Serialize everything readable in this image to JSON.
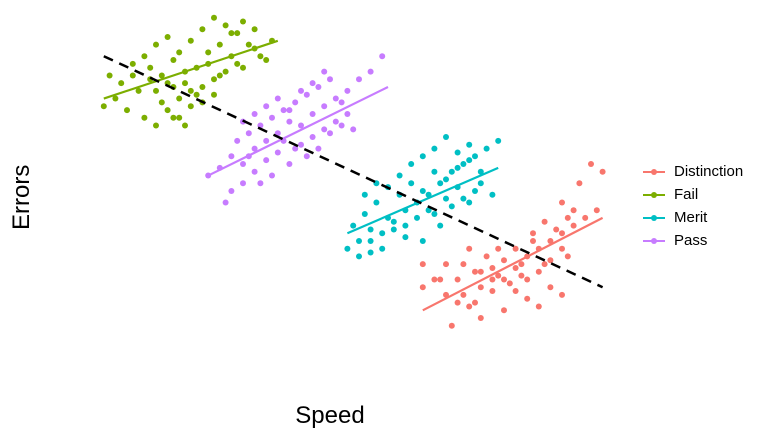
{
  "chart_data": {
    "type": "scatter",
    "title": "",
    "xlabel": "Speed",
    "ylabel": "Errors",
    "xlim": [
      0,
      100
    ],
    "ylim": [
      0,
      100
    ],
    "grid": false,
    "legend_position": "right",
    "series": [
      {
        "name": "Distinction",
        "color": "#F8766D",
        "trend": [
          [
            66,
            22
          ],
          [
            97,
            46
          ]
        ],
        "points": [
          [
            66,
            28
          ],
          [
            70,
            26
          ],
          [
            72,
            24
          ],
          [
            69,
            30
          ],
          [
            73,
            26
          ],
          [
            75,
            24
          ],
          [
            76,
            28
          ],
          [
            78,
            27
          ],
          [
            80,
            30
          ],
          [
            82,
            27
          ],
          [
            84,
            25
          ],
          [
            86,
            23
          ],
          [
            88,
            28
          ],
          [
            90,
            26
          ],
          [
            80,
            22
          ],
          [
            76,
            20
          ],
          [
            74,
            23
          ],
          [
            78,
            33
          ],
          [
            80,
            35
          ],
          [
            82,
            33
          ],
          [
            84,
            36
          ],
          [
            86,
            38
          ],
          [
            88,
            40
          ],
          [
            90,
            42
          ],
          [
            92,
            44
          ],
          [
            94,
            46
          ],
          [
            96,
            48
          ],
          [
            84,
            30
          ],
          [
            86,
            32
          ],
          [
            88,
            35
          ],
          [
            90,
            38
          ],
          [
            76,
            32
          ],
          [
            78,
            30
          ],
          [
            82,
            38
          ],
          [
            85,
            40
          ],
          [
            87,
            45
          ],
          [
            89,
            43
          ],
          [
            91,
            46
          ],
          [
            93,
            55
          ],
          [
            95,
            60
          ],
          [
            97,
            58
          ],
          [
            74,
            38
          ],
          [
            73,
            34
          ],
          [
            77,
            36
          ],
          [
            79,
            31
          ],
          [
            81,
            29
          ],
          [
            83,
            31
          ],
          [
            87,
            34
          ],
          [
            91,
            36
          ],
          [
            71,
            18
          ],
          [
            66,
            34
          ],
          [
            68,
            30
          ],
          [
            70,
            34
          ],
          [
            72,
            30
          ],
          [
            75,
            32
          ],
          [
            79,
            38
          ],
          [
            83,
            34
          ],
          [
            85,
            42
          ],
          [
            90,
            50
          ],
          [
            92,
            48
          ]
        ]
      },
      {
        "name": "Fail",
        "color": "#7CAE00",
        "trend": [
          [
            11,
            77
          ],
          [
            41,
            92
          ]
        ],
        "points": [
          [
            11,
            75
          ],
          [
            13,
            77
          ],
          [
            15,
            74
          ],
          [
            17,
            79
          ],
          [
            19,
            82
          ],
          [
            21,
            76
          ],
          [
            23,
            80
          ],
          [
            25,
            84
          ],
          [
            27,
            78
          ],
          [
            29,
            86
          ],
          [
            31,
            83
          ],
          [
            33,
            88
          ],
          [
            35,
            85
          ],
          [
            37,
            90
          ],
          [
            39,
            87
          ],
          [
            16,
            86
          ],
          [
            18,
            88
          ],
          [
            20,
            91
          ],
          [
            22,
            93
          ],
          [
            24,
            89
          ],
          [
            26,
            92
          ],
          [
            28,
            95
          ],
          [
            30,
            98
          ],
          [
            32,
            96
          ],
          [
            34,
            94
          ],
          [
            36,
            91
          ],
          [
            38,
            88
          ],
          [
            40,
            92
          ],
          [
            18,
            72
          ],
          [
            20,
            70
          ],
          [
            22,
            74
          ],
          [
            24,
            72
          ],
          [
            26,
            75
          ],
          [
            28,
            80
          ],
          [
            30,
            82
          ],
          [
            14,
            81
          ],
          [
            12,
            83
          ],
          [
            16,
            83
          ],
          [
            19,
            85
          ],
          [
            21,
            83
          ],
          [
            23,
            87
          ],
          [
            25,
            81
          ],
          [
            27,
            85
          ],
          [
            29,
            89
          ],
          [
            31,
            91
          ],
          [
            33,
            94
          ],
          [
            35,
            97
          ],
          [
            37,
            95
          ],
          [
            20,
            79
          ],
          [
            22,
            81
          ],
          [
            24,
            77
          ],
          [
            26,
            79
          ],
          [
            28,
            76
          ],
          [
            30,
            78
          ],
          [
            32,
            84
          ],
          [
            34,
            86
          ],
          [
            23,
            72
          ],
          [
            25,
            70
          ]
        ]
      },
      {
        "name": "Merit",
        "color": "#00BFC4",
        "trend": [
          [
            53,
            42
          ],
          [
            79,
            59
          ]
        ],
        "points": [
          [
            53,
            38
          ],
          [
            55,
            40
          ],
          [
            57,
            37
          ],
          [
            59,
            42
          ],
          [
            61,
            45
          ],
          [
            63,
            48
          ],
          [
            65,
            50
          ],
          [
            67,
            52
          ],
          [
            69,
            55
          ],
          [
            71,
            58
          ],
          [
            73,
            60
          ],
          [
            75,
            62
          ],
          [
            77,
            64
          ],
          [
            79,
            66
          ],
          [
            54,
            44
          ],
          [
            56,
            47
          ],
          [
            58,
            50
          ],
          [
            60,
            46
          ],
          [
            62,
            52
          ],
          [
            64,
            55
          ],
          [
            66,
            53
          ],
          [
            68,
            58
          ],
          [
            70,
            56
          ],
          [
            72,
            54
          ],
          [
            74,
            50
          ],
          [
            76,
            58
          ],
          [
            55,
            36
          ],
          [
            57,
            40
          ],
          [
            59,
            38
          ],
          [
            61,
            43
          ],
          [
            63,
            41
          ],
          [
            65,
            46
          ],
          [
            67,
            48
          ],
          [
            69,
            44
          ],
          [
            71,
            49
          ],
          [
            73,
            51
          ],
          [
            75,
            53
          ],
          [
            62,
            57
          ],
          [
            64,
            60
          ],
          [
            66,
            62
          ],
          [
            68,
            64
          ],
          [
            70,
            67
          ],
          [
            72,
            63
          ],
          [
            74,
            65
          ],
          [
            60,
            54
          ],
          [
            58,
            55
          ],
          [
            56,
            52
          ],
          [
            57,
            43
          ],
          [
            63,
            44
          ],
          [
            66,
            40
          ],
          [
            68,
            47
          ],
          [
            70,
            51
          ],
          [
            72,
            59
          ],
          [
            74,
            61
          ],
          [
            76,
            55
          ],
          [
            78,
            52
          ]
        ]
      },
      {
        "name": "Pass",
        "color": "#C77CFF",
        "trend": [
          [
            29,
            57
          ],
          [
            60,
            80
          ]
        ],
        "points": [
          [
            29,
            57
          ],
          [
            31,
            59
          ],
          [
            33,
            62
          ],
          [
            35,
            60
          ],
          [
            37,
            64
          ],
          [
            39,
            66
          ],
          [
            41,
            68
          ],
          [
            43,
            71
          ],
          [
            45,
            70
          ],
          [
            47,
            73
          ],
          [
            49,
            75
          ],
          [
            51,
            77
          ],
          [
            53,
            79
          ],
          [
            55,
            82
          ],
          [
            57,
            84
          ],
          [
            59,
            88
          ],
          [
            32,
            50
          ],
          [
            33,
            53
          ],
          [
            35,
            55
          ],
          [
            37,
            58
          ],
          [
            39,
            61
          ],
          [
            41,
            63
          ],
          [
            43,
            60
          ],
          [
            45,
            65
          ],
          [
            47,
            67
          ],
          [
            49,
            69
          ],
          [
            51,
            71
          ],
          [
            53,
            73
          ],
          [
            34,
            66
          ],
          [
            36,
            68
          ],
          [
            38,
            70
          ],
          [
            40,
            72
          ],
          [
            42,
            74
          ],
          [
            44,
            76
          ],
          [
            46,
            78
          ],
          [
            48,
            80
          ],
          [
            50,
            82
          ],
          [
            52,
            76
          ],
          [
            35,
            71
          ],
          [
            37,
            73
          ],
          [
            39,
            75
          ],
          [
            41,
            77
          ],
          [
            43,
            74
          ],
          [
            45,
            79
          ],
          [
            47,
            81
          ],
          [
            49,
            84
          ],
          [
            44,
            64
          ],
          [
            46,
            62
          ],
          [
            48,
            64
          ],
          [
            50,
            68
          ],
          [
            52,
            70
          ],
          [
            54,
            69
          ],
          [
            40,
            57
          ],
          [
            38,
            55
          ],
          [
            36,
            62
          ],
          [
            42,
            66
          ]
        ]
      }
    ],
    "overall_trend": [
      [
        11,
        88
      ],
      [
        97,
        28
      ]
    ]
  }
}
